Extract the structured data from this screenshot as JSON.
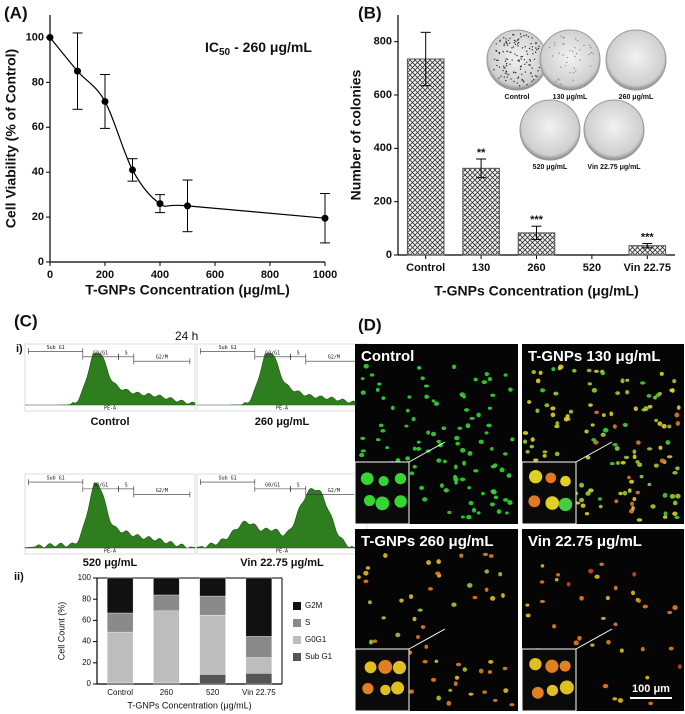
{
  "panel_labels": {
    "A": "(A)",
    "B": "(B)",
    "C": "(C)",
    "D": "(D)"
  },
  "chart_data": [
    {
      "type": "line",
      "annotation": {
        "main": "IC",
        "subscript": "50",
        "rest": "- 260 μg/mL"
      },
      "x_label": "T-GNPs Concentration (μg/mL)",
      "y_label": "Cell Viability (% of Control)",
      "x": [
        0,
        100,
        200,
        300,
        400,
        500,
        1000
      ],
      "y": [
        100,
        85,
        71.5,
        41,
        26,
        25,
        19.5
      ],
      "errors": [
        0,
        17,
        12,
        5,
        4,
        11.5,
        11
      ],
      "color": "#000000",
      "xlim": [
        0,
        1000
      ],
      "xticks": [
        0,
        200,
        400,
        600,
        800,
        1000
      ],
      "ylim": [
        0,
        110
      ],
      "yticks": [
        0,
        20,
        40,
        60,
        80,
        100
      ]
    },
    {
      "type": "bar",
      "x_label": "T-GNPs Concentration (μg/mL)",
      "y_label": "Number of colonies",
      "categories": [
        "Control",
        "130",
        "260",
        "520",
        "Vin 22.75"
      ],
      "values": [
        735,
        325,
        83,
        0,
        35
      ],
      "errors": [
        100,
        35,
        25,
        0,
        8
      ],
      "significance": [
        null,
        "**",
        "***",
        null,
        "***"
      ],
      "color": "#555555",
      "ylim": [
        0,
        900
      ],
      "yticks": [
        0,
        200,
        400,
        600,
        800
      ],
      "inset_labels": [
        "Control",
        "130 μg/mL",
        "260 μg/mL",
        "520 μg/mL",
        "Vin 22.75 μg/mL"
      ]
    },
    {
      "type": "stacked_bar",
      "panel_sublabel": "ii)",
      "x_label": "T-GNPs Concentration (μg/mL)",
      "y_label": "Cell Count (%)",
      "categories": [
        "Control",
        "260",
        "520",
        "Vin 22.75"
      ],
      "series": [
        {
          "name": "Sub G1",
          "color": "#555555",
          "values": [
            1,
            1,
            9,
            10
          ]
        },
        {
          "name": "G0G1",
          "color": "#bdbdbd",
          "values": [
            48,
            68,
            56,
            15
          ]
        },
        {
          "name": "S",
          "color": "#8a8a8a",
          "values": [
            18,
            15,
            18,
            20
          ]
        },
        {
          "name": "G2M",
          "color": "#111111",
          "values": [
            33,
            16,
            17,
            55
          ]
        }
      ],
      "ylim": [
        0,
        100
      ],
      "yticks": [
        0,
        20,
        40,
        60,
        80,
        100
      ]
    }
  ],
  "panel_c": {
    "time": "24 h",
    "sublabel": "i)",
    "gates": [
      "Sub G1",
      "G0/G1",
      "S",
      "G2/M"
    ],
    "axis": "PE-A",
    "histograms": [
      "Control",
      "260 μg/mL",
      "520 μg/mL",
      "Vin 22.75 μg/mL"
    ]
  },
  "panel_d": {
    "images": [
      "Control",
      "T-GNPs 130 μg/mL",
      "T-GNPs 260 μg/mL",
      "Vin 22.75 μg/mL"
    ],
    "scale_bar": "100 μm"
  }
}
